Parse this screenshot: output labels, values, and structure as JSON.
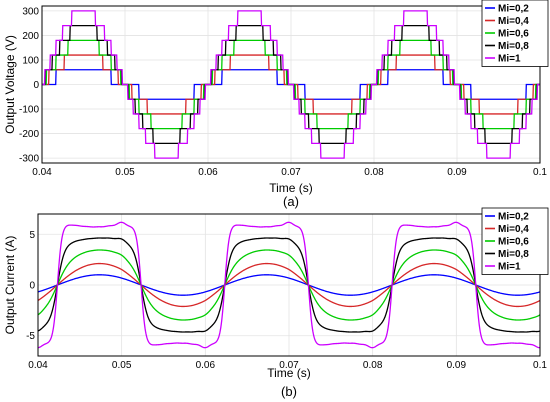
{
  "chart_data": [
    {
      "id": "a",
      "type": "line",
      "caption": "(a)",
      "xlabel": "Time (s)",
      "ylabel": "Output Voltage (V)",
      "xlim": [
        0.04,
        0.1
      ],
      "ylim": [
        -320,
        320
      ],
      "xticks": [
        0.04,
        0.05,
        0.06,
        0.07,
        0.08,
        0.09,
        0.1
      ],
      "xtick_labels": [
        "0.04",
        "0.05",
        "0.06",
        "0.07",
        "0.08",
        "0.09",
        "0.1"
      ],
      "yticks": [
        -300,
        -200,
        -100,
        0,
        100,
        200,
        300
      ],
      "ytick_labels": [
        "-300",
        "-200",
        "-100",
        "0",
        "100",
        "200",
        "300"
      ],
      "grid": true,
      "legend_position": "top-right",
      "waveform": "staircase",
      "frequency_hz": 50,
      "step_voltage": 60,
      "series": [
        {
          "name": "Mi=0,2",
          "color": "#0000ff",
          "mi": 0.2
        },
        {
          "name": "Mi=0,4",
          "color": "#d62728",
          "mi": 0.4
        },
        {
          "name": "Mi=0,6",
          "color": "#00cc00",
          "mi": 0.6
        },
        {
          "name": "Mi=0,8",
          "color": "#000000",
          "mi": 0.8
        },
        {
          "name": "Mi=1",
          "color": "#cc00ff",
          "mi": 1.0
        }
      ]
    },
    {
      "id": "b",
      "type": "line",
      "caption": "(b)",
      "xlabel": "Time (s)",
      "ylabel": "Output Current (A)",
      "xlim": [
        0.04,
        0.1
      ],
      "ylim": [
        -7,
        7
      ],
      "xticks": [
        0.04,
        0.05,
        0.06,
        0.07,
        0.08,
        0.09,
        0.1
      ],
      "xtick_labels": [
        "0.04",
        "0.05",
        "0.06",
        "0.07",
        "0.08",
        "0.09",
        "0.1"
      ],
      "yticks": [
        -5,
        0,
        5
      ],
      "ytick_labels": [
        "-5",
        "0",
        "5"
      ],
      "grid": true,
      "legend_position": "top-right",
      "waveform": "rl-filtered",
      "frequency_hz": 50,
      "peak_current": 6,
      "series": [
        {
          "name": "Mi=0,2",
          "color": "#0000ff",
          "mi": 0.2
        },
        {
          "name": "Mi=0,4",
          "color": "#d62728",
          "mi": 0.4
        },
        {
          "name": "Mi=0,6",
          "color": "#00cc00",
          "mi": 0.6
        },
        {
          "name": "Mi=0,8",
          "color": "#000000",
          "mi": 0.8
        },
        {
          "name": "Mi=1",
          "color": "#cc00ff",
          "mi": 1.0
        }
      ]
    }
  ]
}
